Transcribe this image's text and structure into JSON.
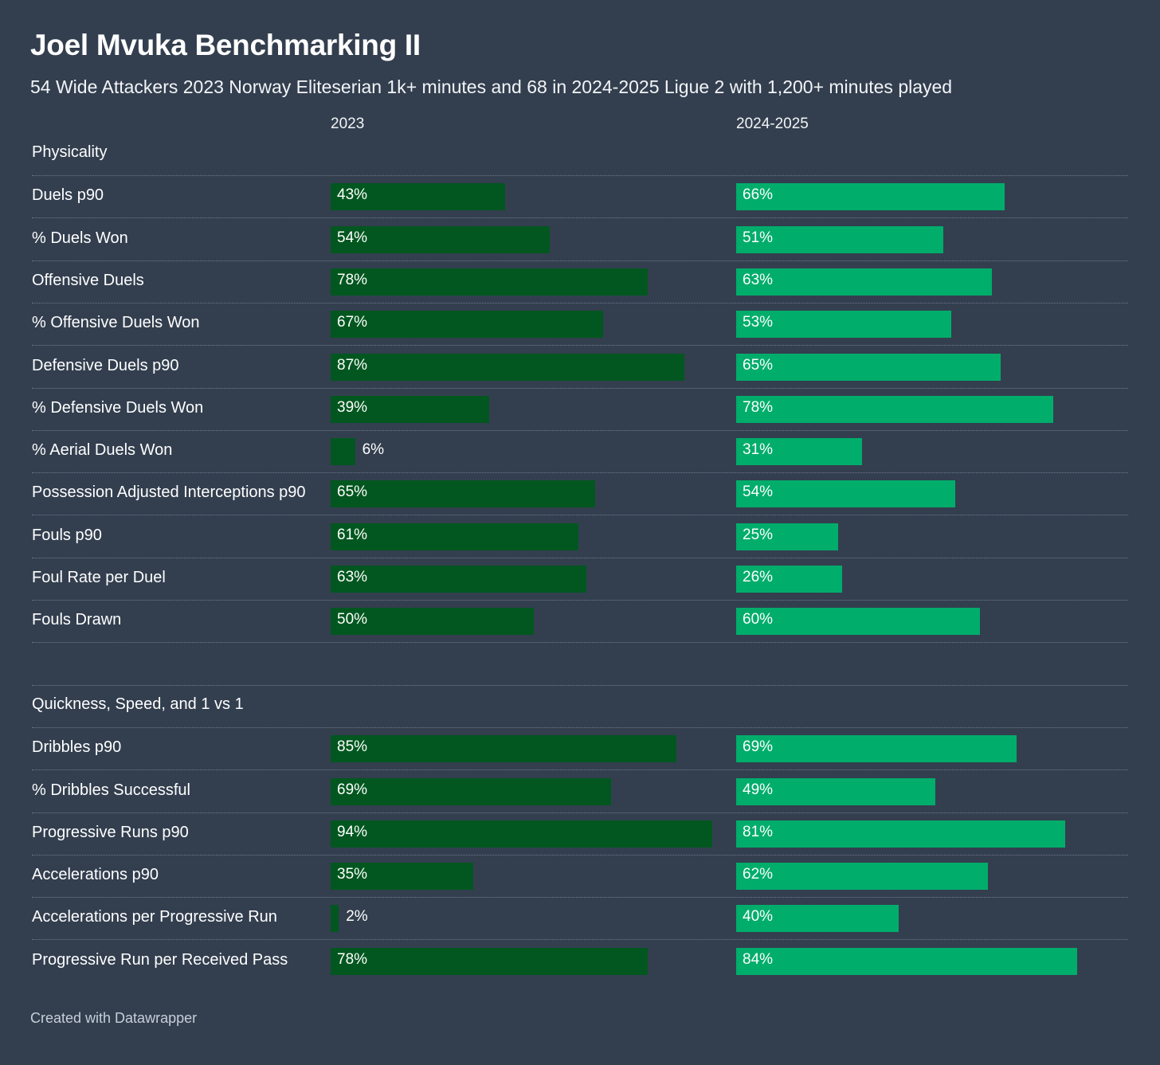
{
  "title": "Joel Mvuka Benchmarking II",
  "subtitle": "54 Wide Attackers 2023 Norway Eliteserian 1k+ minutes and 68 in 2024-2025 Ligue 2 with 1,200+ minutes played",
  "footer": "Created with Datawrapper",
  "colors": {
    "background": "#333f4f",
    "bar_2023": "#01571f",
    "bar_2024_2025": "#00ad6b"
  },
  "chart_data": {
    "type": "bar",
    "orientation": "horizontal",
    "unit": "%",
    "xlim": [
      0,
      100
    ],
    "columns": [
      "2023",
      "2024-2025"
    ],
    "sections": [
      {
        "name": "Physicality",
        "metrics": [
          {
            "label": "Duels p90",
            "values": [
              43,
              66
            ]
          },
          {
            "label": "% Duels Won",
            "values": [
              54,
              51
            ]
          },
          {
            "label": "Offensive Duels",
            "values": [
              78,
              63
            ]
          },
          {
            "label": "% Offensive Duels Won",
            "values": [
              67,
              53
            ]
          },
          {
            "label": "Defensive Duels p90",
            "values": [
              87,
              65
            ]
          },
          {
            "label": "% Defensive Duels Won",
            "values": [
              39,
              78
            ]
          },
          {
            "label": "% Aerial Duels Won",
            "values": [
              6,
              31
            ]
          },
          {
            "label": "Possession Adjusted Interceptions p90",
            "values": [
              65,
              54
            ]
          },
          {
            "label": "Fouls p90",
            "values": [
              61,
              25
            ]
          },
          {
            "label": "Foul Rate per Duel",
            "values": [
              63,
              26
            ]
          },
          {
            "label": "Fouls Drawn",
            "values": [
              50,
              60
            ]
          }
        ]
      },
      {
        "name": "Quickness, Speed, and 1 vs 1",
        "metrics": [
          {
            "label": "Dribbles p90",
            "values": [
              85,
              69
            ]
          },
          {
            "label": "% Dribbles Successful",
            "values": [
              69,
              49
            ]
          },
          {
            "label": "Progressive Runs p90",
            "values": [
              94,
              81
            ]
          },
          {
            "label": "Accelerations p90",
            "values": [
              35,
              62
            ]
          },
          {
            "label": "Accelerations per Progressive Run",
            "values": [
              2,
              40
            ]
          },
          {
            "label": "Progressive Run per Received Pass",
            "values": [
              78,
              84
            ]
          }
        ]
      }
    ]
  }
}
